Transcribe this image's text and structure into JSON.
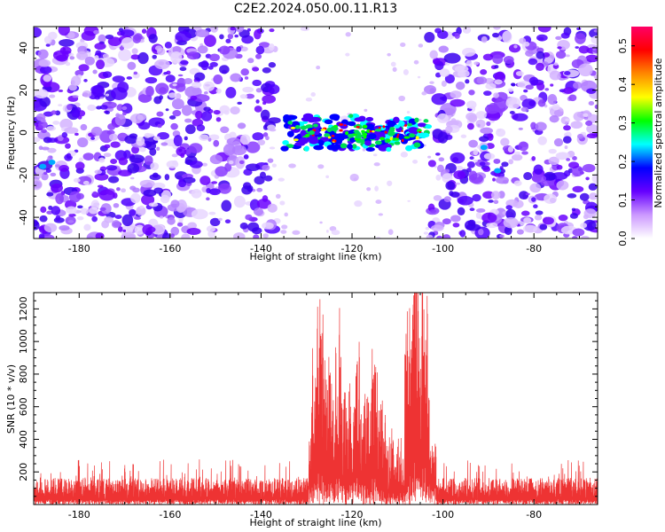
{
  "title": "C2E2.2024.050.00.11.R13",
  "chart_data": [
    {
      "type": "heatmap",
      "name": "spectrogram",
      "xlabel": "Height of straight line (km)",
      "ylabel": "Frequency (Hz)",
      "xlim": [
        -190,
        -66
      ],
      "ylim": [
        -50,
        50
      ],
      "xticks": [
        -180,
        -160,
        -140,
        -120,
        -100,
        -80
      ],
      "yticks": [
        -40,
        -20,
        0,
        20,
        40
      ],
      "colorbar": {
        "label": "Normalized spectral amplitude",
        "range": [
          0.0,
          0.55
        ],
        "ticks": [
          0.0,
          0.1,
          0.2,
          0.3,
          0.4,
          0.5
        ],
        "colors": [
          "#ffffff",
          "#cc99ff",
          "#6600ff",
          "#0000ff",
          "#00ffff",
          "#00ff00",
          "#ffff00",
          "#ff8800",
          "#ff0000",
          "#ff0066"
        ]
      },
      "signal_band": {
        "x_range": [
          -135,
          -103
        ],
        "freq_range": [
          -8,
          8
        ]
      },
      "quiet_zone": {
        "x_range": [
          -137,
          -103
        ]
      }
    },
    {
      "type": "line",
      "name": "snr",
      "xlabel": "Height of straight line (km)",
      "ylabel": "SNR (10 * v/v)",
      "xlim": [
        -190,
        -66
      ],
      "ylim": [
        0,
        1300
      ],
      "xticks": [
        -180,
        -160,
        -140,
        -120,
        -100,
        -80
      ],
      "yticks": [
        200,
        400,
        600,
        800,
        1000,
        1200
      ],
      "color": "#ee3333",
      "baseline": 130,
      "peaks": [
        {
          "x": -127,
          "y": 1020
        },
        {
          "x": -123,
          "y": 850
        },
        {
          "x": -119,
          "y": 820
        },
        {
          "x": -115,
          "y": 780
        },
        {
          "x": -106,
          "y": 1300
        },
        {
          "x": -104,
          "y": 1060
        }
      ]
    }
  ]
}
